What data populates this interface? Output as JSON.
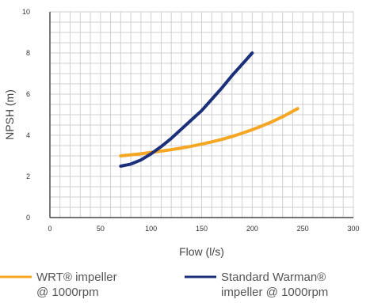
{
  "chart_data": {
    "type": "line",
    "xlabel": "Flow (l/s)",
    "ylabel": "NPSH (m)",
    "xlim": [
      0,
      300
    ],
    "ylim": [
      0,
      10
    ],
    "x_ticks": [
      0,
      50,
      100,
      150,
      200,
      250,
      300
    ],
    "y_ticks": [
      0,
      2,
      4,
      6,
      8,
      10
    ],
    "grid": true,
    "legend_position": "bottom",
    "series": [
      {
        "name": "WRT® impeller @ 1000rpm",
        "name_lines": [
          "WRT® impeller",
          "@ 1000rpm"
        ],
        "color": "#f5a623",
        "x": [
          70,
          80,
          90,
          100,
          110,
          120,
          130,
          140,
          150,
          160,
          170,
          180,
          190,
          200,
          210,
          220,
          230,
          245
        ],
        "y": [
          3.0,
          3.05,
          3.1,
          3.17,
          3.23,
          3.3,
          3.38,
          3.47,
          3.57,
          3.68,
          3.8,
          3.94,
          4.1,
          4.27,
          4.46,
          4.67,
          4.9,
          5.3
        ]
      },
      {
        "name": "Standard Warman® impeller @ 1000rpm",
        "name_lines": [
          "Standard Warman®",
          "impeller @ 1000rpm"
        ],
        "color": "#1b2f7a",
        "x": [
          70,
          80,
          90,
          100,
          110,
          120,
          130,
          140,
          150,
          160,
          170,
          180,
          190,
          200
        ],
        "y": [
          2.5,
          2.6,
          2.8,
          3.1,
          3.45,
          3.85,
          4.3,
          4.75,
          5.2,
          5.75,
          6.3,
          6.9,
          7.45,
          8.0
        ]
      }
    ]
  }
}
